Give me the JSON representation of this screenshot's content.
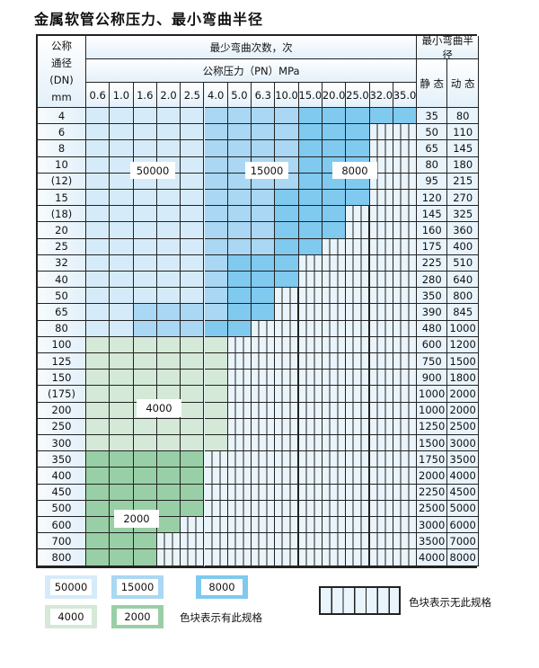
{
  "title": "金属软管公称压力、最小弯曲半径",
  "header": {
    "dn_label": "公称\n通径\n(DN)\nmm",
    "cycles_label": "最少弯曲次数，次",
    "pressure_label": "公称压力（PN）MPa",
    "radius_label": "最小弯曲半径",
    "static_label": "静 态",
    "dynamic_label": "动 态",
    "pressures": [
      "0.6",
      "1.0",
      "1.6",
      "2.0",
      "2.5",
      "4.0",
      "5.0",
      "6.3",
      "10.0",
      "15.0",
      "20.0",
      "25.0",
      "32.0",
      "35.0"
    ]
  },
  "tiers": {
    "a": "50000",
    "b": "15000",
    "c": "8000",
    "g": "4000",
    "h": "2000",
    "x": "无此规格"
  },
  "colors": {
    "a": "#d6ebf9",
    "b": "#aad7f3",
    "c": "#80c9ef",
    "g": "#d4e9d7",
    "h": "#99cfa6"
  },
  "rows": [
    {
      "dn": "4",
      "static": "35",
      "dynamic": "80",
      "cells": "aaaaabbbbccccc"
    },
    {
      "dn": "6",
      "static": "50",
      "dynamic": "110",
      "cells": "aaaaabbbbcccxx"
    },
    {
      "dn": "8",
      "static": "65",
      "dynamic": "145",
      "cells": "aaaaabbbbcccxx"
    },
    {
      "dn": "10",
      "static": "80",
      "dynamic": "180",
      "cells": "aaaaabbbbcccxx"
    },
    {
      "dn": "(12)",
      "static": "95",
      "dynamic": "215",
      "cells": "aaaaabbbbcccxx"
    },
    {
      "dn": "15",
      "static": "120",
      "dynamic": "270",
      "cells": "aaaaabbbccccxx"
    },
    {
      "dn": "(18)",
      "static": "145",
      "dynamic": "325",
      "cells": "aaaaabbbcccxxx"
    },
    {
      "dn": "20",
      "static": "160",
      "dynamic": "360",
      "cells": "aaaaabbbcccxxx"
    },
    {
      "dn": "25",
      "static": "175",
      "dynamic": "400",
      "cells": "aaaaabbbccxxxx"
    },
    {
      "dn": "32",
      "static": "225",
      "dynamic": "510",
      "cells": "aaaaabcccxxxxx"
    },
    {
      "dn": "40",
      "static": "280",
      "dynamic": "640",
      "cells": "aaaaabcccxxxxx"
    },
    {
      "dn": "50",
      "static": "350",
      "dynamic": "800",
      "cells": "aaaaabccxxxxxx"
    },
    {
      "dn": "65",
      "static": "390",
      "dynamic": "845",
      "cells": "aabbbbccxxxxxx"
    },
    {
      "dn": "80",
      "static": "480",
      "dynamic": "1000",
      "cells": "aabbbccxxxxxxx"
    },
    {
      "dn": "100",
      "static": "600",
      "dynamic": "1200",
      "cells": "ggggggxxxxxxxx"
    },
    {
      "dn": "125",
      "static": "750",
      "dynamic": "1500",
      "cells": "ggggggxxxxxxxx"
    },
    {
      "dn": "150",
      "static": "900",
      "dynamic": "1800",
      "cells": "ggggggxxxxxxxx"
    },
    {
      "dn": "(175)",
      "static": "1000",
      "dynamic": "2000",
      "cells": "ggggggxxxxxxxx"
    },
    {
      "dn": "200",
      "static": "1000",
      "dynamic": "2000",
      "cells": "ggggggxxxxxxxx"
    },
    {
      "dn": "250",
      "static": "1250",
      "dynamic": "2500",
      "cells": "ggggggxxxxxxxx"
    },
    {
      "dn": "300",
      "static": "1500",
      "dynamic": "3000",
      "cells": "ggggggxxxxxxxx"
    },
    {
      "dn": "350",
      "static": "1750",
      "dynamic": "3500",
      "cells": "hhhhhxxxxxxxxx"
    },
    {
      "dn": "400",
      "static": "2000",
      "dynamic": "4000",
      "cells": "hhhhhxxxxxxxxx"
    },
    {
      "dn": "450",
      "static": "2250",
      "dynamic": "4500",
      "cells": "hhhhhxxxxxxxxx"
    },
    {
      "dn": "500",
      "static": "2500",
      "dynamic": "5000",
      "cells": "hhhhhxxxxxxxxx"
    },
    {
      "dn": "600",
      "static": "3000",
      "dynamic": "6000",
      "cells": "hhhhxxxxxxxxxx"
    },
    {
      "dn": "700",
      "static": "3500",
      "dynamic": "7000",
      "cells": "hhhxxxxxxxxxxx"
    },
    {
      "dn": "800",
      "static": "4000",
      "dynamic": "8000",
      "cells": "hhhxxxxxxxxxxx"
    }
  ],
  "region_labels": {
    "a": "50000",
    "b": "15000",
    "c": "8000",
    "g": "4000",
    "h": "2000"
  },
  "legend": {
    "items": [
      {
        "tier": "a",
        "label": "50000"
      },
      {
        "tier": "b",
        "label": "15000"
      },
      {
        "tier": "c",
        "label": "8000"
      },
      {
        "tier": "g",
        "label": "4000"
      },
      {
        "tier": "h",
        "label": "2000"
      }
    ],
    "has_spec_text": "色块表示有此规格",
    "no_spec_text": "色块表示无此规格"
  }
}
